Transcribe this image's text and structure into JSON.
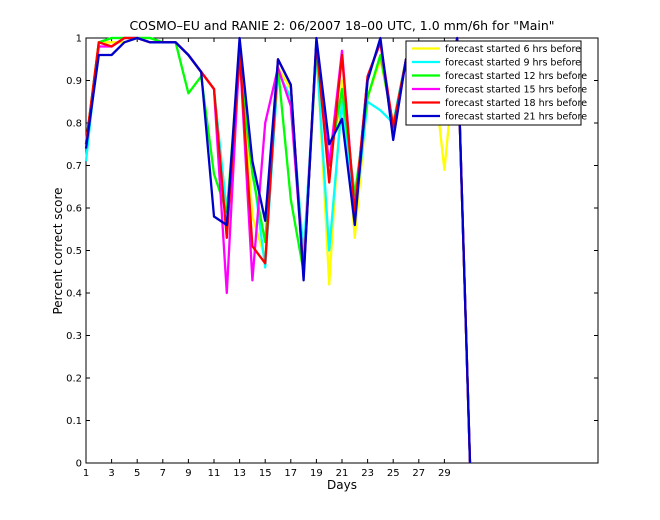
{
  "chart_data": {
    "type": "line",
    "title": "COSMO–EU and RANIE 2: 06/2007 18–00 UTC, 1.0 mm/6h for \"Main\"",
    "xlabel": "Days",
    "ylabel": "Percent correct score",
    "xlim": [
      1,
      41
    ],
    "ylim": [
      0,
      1
    ],
    "xticks": [
      1,
      3,
      5,
      7,
      9,
      11,
      13,
      15,
      17,
      19,
      21,
      23,
      25,
      27,
      29
    ],
    "yticks": [
      0,
      0.1,
      0.2,
      0.3,
      0.4,
      0.5,
      0.6,
      0.7,
      0.8,
      0.9,
      1
    ],
    "x": [
      1,
      2,
      3,
      4,
      5,
      6,
      7,
      8,
      9,
      10,
      11,
      12,
      13,
      14,
      15,
      16,
      17,
      18,
      19,
      20,
      21,
      22,
      23,
      24,
      25,
      26,
      27,
      28,
      29,
      30,
      31
    ],
    "legend_position": "top-right",
    "series": [
      {
        "name": "forecast started 6 hrs before",
        "color": "#ffff00",
        "values": [
          0.75,
          0.99,
          0.99,
          0.99,
          1.0,
          1.0,
          0.99,
          0.99,
          0.96,
          0.92,
          0.88,
          0.59,
          0.98,
          0.58,
          0.48,
          0.93,
          0.88,
          0.45,
          0.99,
          0.42,
          0.9,
          0.53,
          0.86,
          0.95,
          0.8,
          0.95,
          0.99,
          0.96,
          0.69,
          1.0,
          0
        ]
      },
      {
        "name": "forecast started 9 hrs before",
        "color": "#00ffff",
        "values": [
          0.71,
          0.99,
          1.0,
          1.0,
          1.0,
          1.0,
          0.99,
          0.99,
          0.96,
          0.92,
          0.88,
          0.59,
          0.96,
          0.7,
          0.46,
          0.92,
          0.86,
          0.49,
          0.97,
          0.5,
          0.85,
          0.58,
          0.85,
          0.83,
          0.8,
          0.95,
          0.99,
          0.96,
          0.8,
          1.0,
          0
        ]
      },
      {
        "name": "forecast started 12 hrs before",
        "color": "#00ff00",
        "values": [
          0.75,
          0.99,
          1.0,
          1.0,
          1.0,
          1.0,
          0.99,
          0.99,
          0.87,
          0.91,
          0.68,
          0.59,
          0.94,
          0.68,
          0.52,
          0.93,
          0.62,
          0.45,
          0.97,
          0.7,
          0.88,
          0.63,
          0.86,
          0.96,
          0.79,
          0.95,
          0.99,
          0.96,
          0.81,
          1.0,
          0
        ]
      },
      {
        "name": "forecast started 15 hrs before",
        "color": "#ff00ff",
        "values": [
          0.75,
          0.98,
          0.98,
          1.0,
          1.0,
          0.99,
          0.99,
          0.99,
          0.96,
          0.92,
          0.88,
          0.4,
          0.97,
          0.43,
          0.8,
          0.93,
          0.84,
          0.45,
          0.99,
          0.7,
          0.97,
          0.59,
          0.91,
          0.99,
          0.77,
          0.95,
          0.99,
          0.96,
          0.84,
          1.0,
          0
        ]
      },
      {
        "name": "forecast started 18 hrs before",
        "color": "#ff0000",
        "values": [
          0.75,
          0.99,
          0.98,
          1.0,
          1.0,
          0.99,
          0.99,
          0.99,
          0.96,
          0.92,
          0.88,
          0.53,
          0.97,
          0.51,
          0.47,
          0.95,
          0.89,
          0.44,
          0.99,
          0.66,
          0.96,
          0.59,
          0.91,
          0.99,
          0.79,
          0.95,
          0.99,
          0.96,
          0.8,
          1.0,
          0
        ]
      },
      {
        "name": "forecast started 21 hrs before",
        "color": "#0000cc",
        "values": [
          0.74,
          0.96,
          0.96,
          0.99,
          1.0,
          0.99,
          0.99,
          0.99,
          0.96,
          0.92,
          0.58,
          0.56,
          1.0,
          0.71,
          0.57,
          0.95,
          0.89,
          0.43,
          1.0,
          0.75,
          0.81,
          0.56,
          0.9,
          1.0,
          0.76,
          0.95,
          0.99,
          0.96,
          0.8,
          1.0,
          0
        ]
      }
    ]
  }
}
